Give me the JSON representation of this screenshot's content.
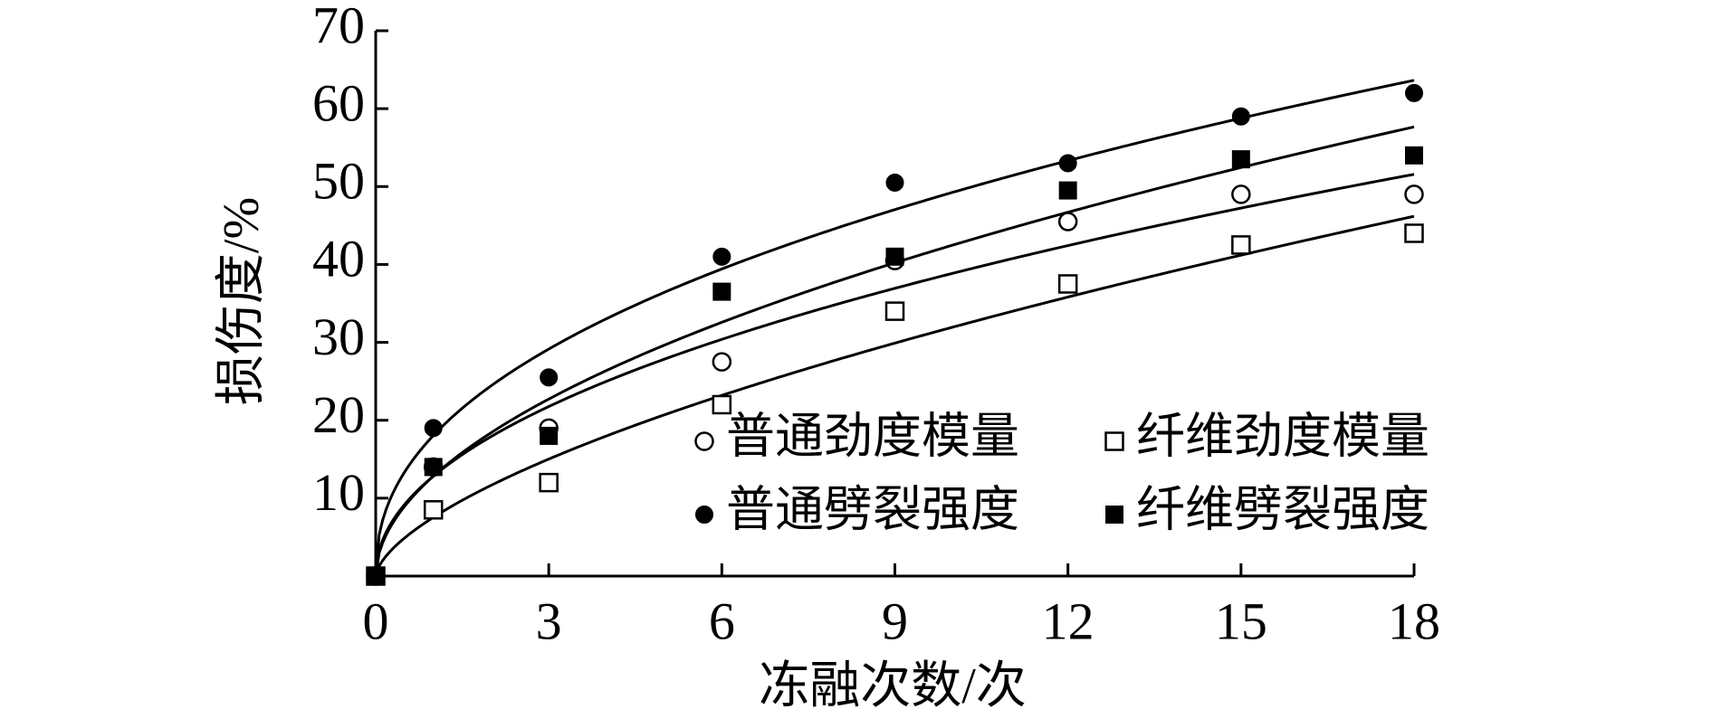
{
  "chart_data": {
    "type": "scatter",
    "x_label": "冻融次数/次",
    "y_label": "损伤度/%",
    "x": [
      0,
      1,
      3,
      6,
      9,
      12,
      15,
      18
    ],
    "series": [
      {
        "name": "普通劲度模量",
        "marker": "open-circle",
        "color": "#000000",
        "values": [
          0,
          14,
          19,
          27.5,
          40.5,
          45.5,
          49,
          49
        ]
      },
      {
        "name": "纤维劲度模量",
        "marker": "open-square",
        "color": "#000000",
        "values": [
          0,
          8.5,
          12,
          22,
          34,
          37.5,
          42.5,
          44
        ]
      },
      {
        "name": "普通劈裂强度",
        "marker": "filled-circle",
        "color": "#000000",
        "values": [
          0,
          19,
          25.5,
          41,
          50.5,
          53,
          59,
          62
        ]
      },
      {
        "name": "纤维劈裂强度",
        "marker": "filled-square",
        "color": "#000000",
        "values": [
          0,
          14,
          18,
          36.5,
          41,
          49.5,
          53.5,
          54
        ]
      }
    ],
    "trendline": "power",
    "xlim": [
      0,
      18
    ],
    "xticks": [
      0,
      3,
      6,
      9,
      12,
      15,
      18
    ],
    "ylim": [
      0,
      70
    ],
    "yticks": [
      10,
      20,
      30,
      40,
      50,
      60,
      70
    ],
    "grid": false
  }
}
